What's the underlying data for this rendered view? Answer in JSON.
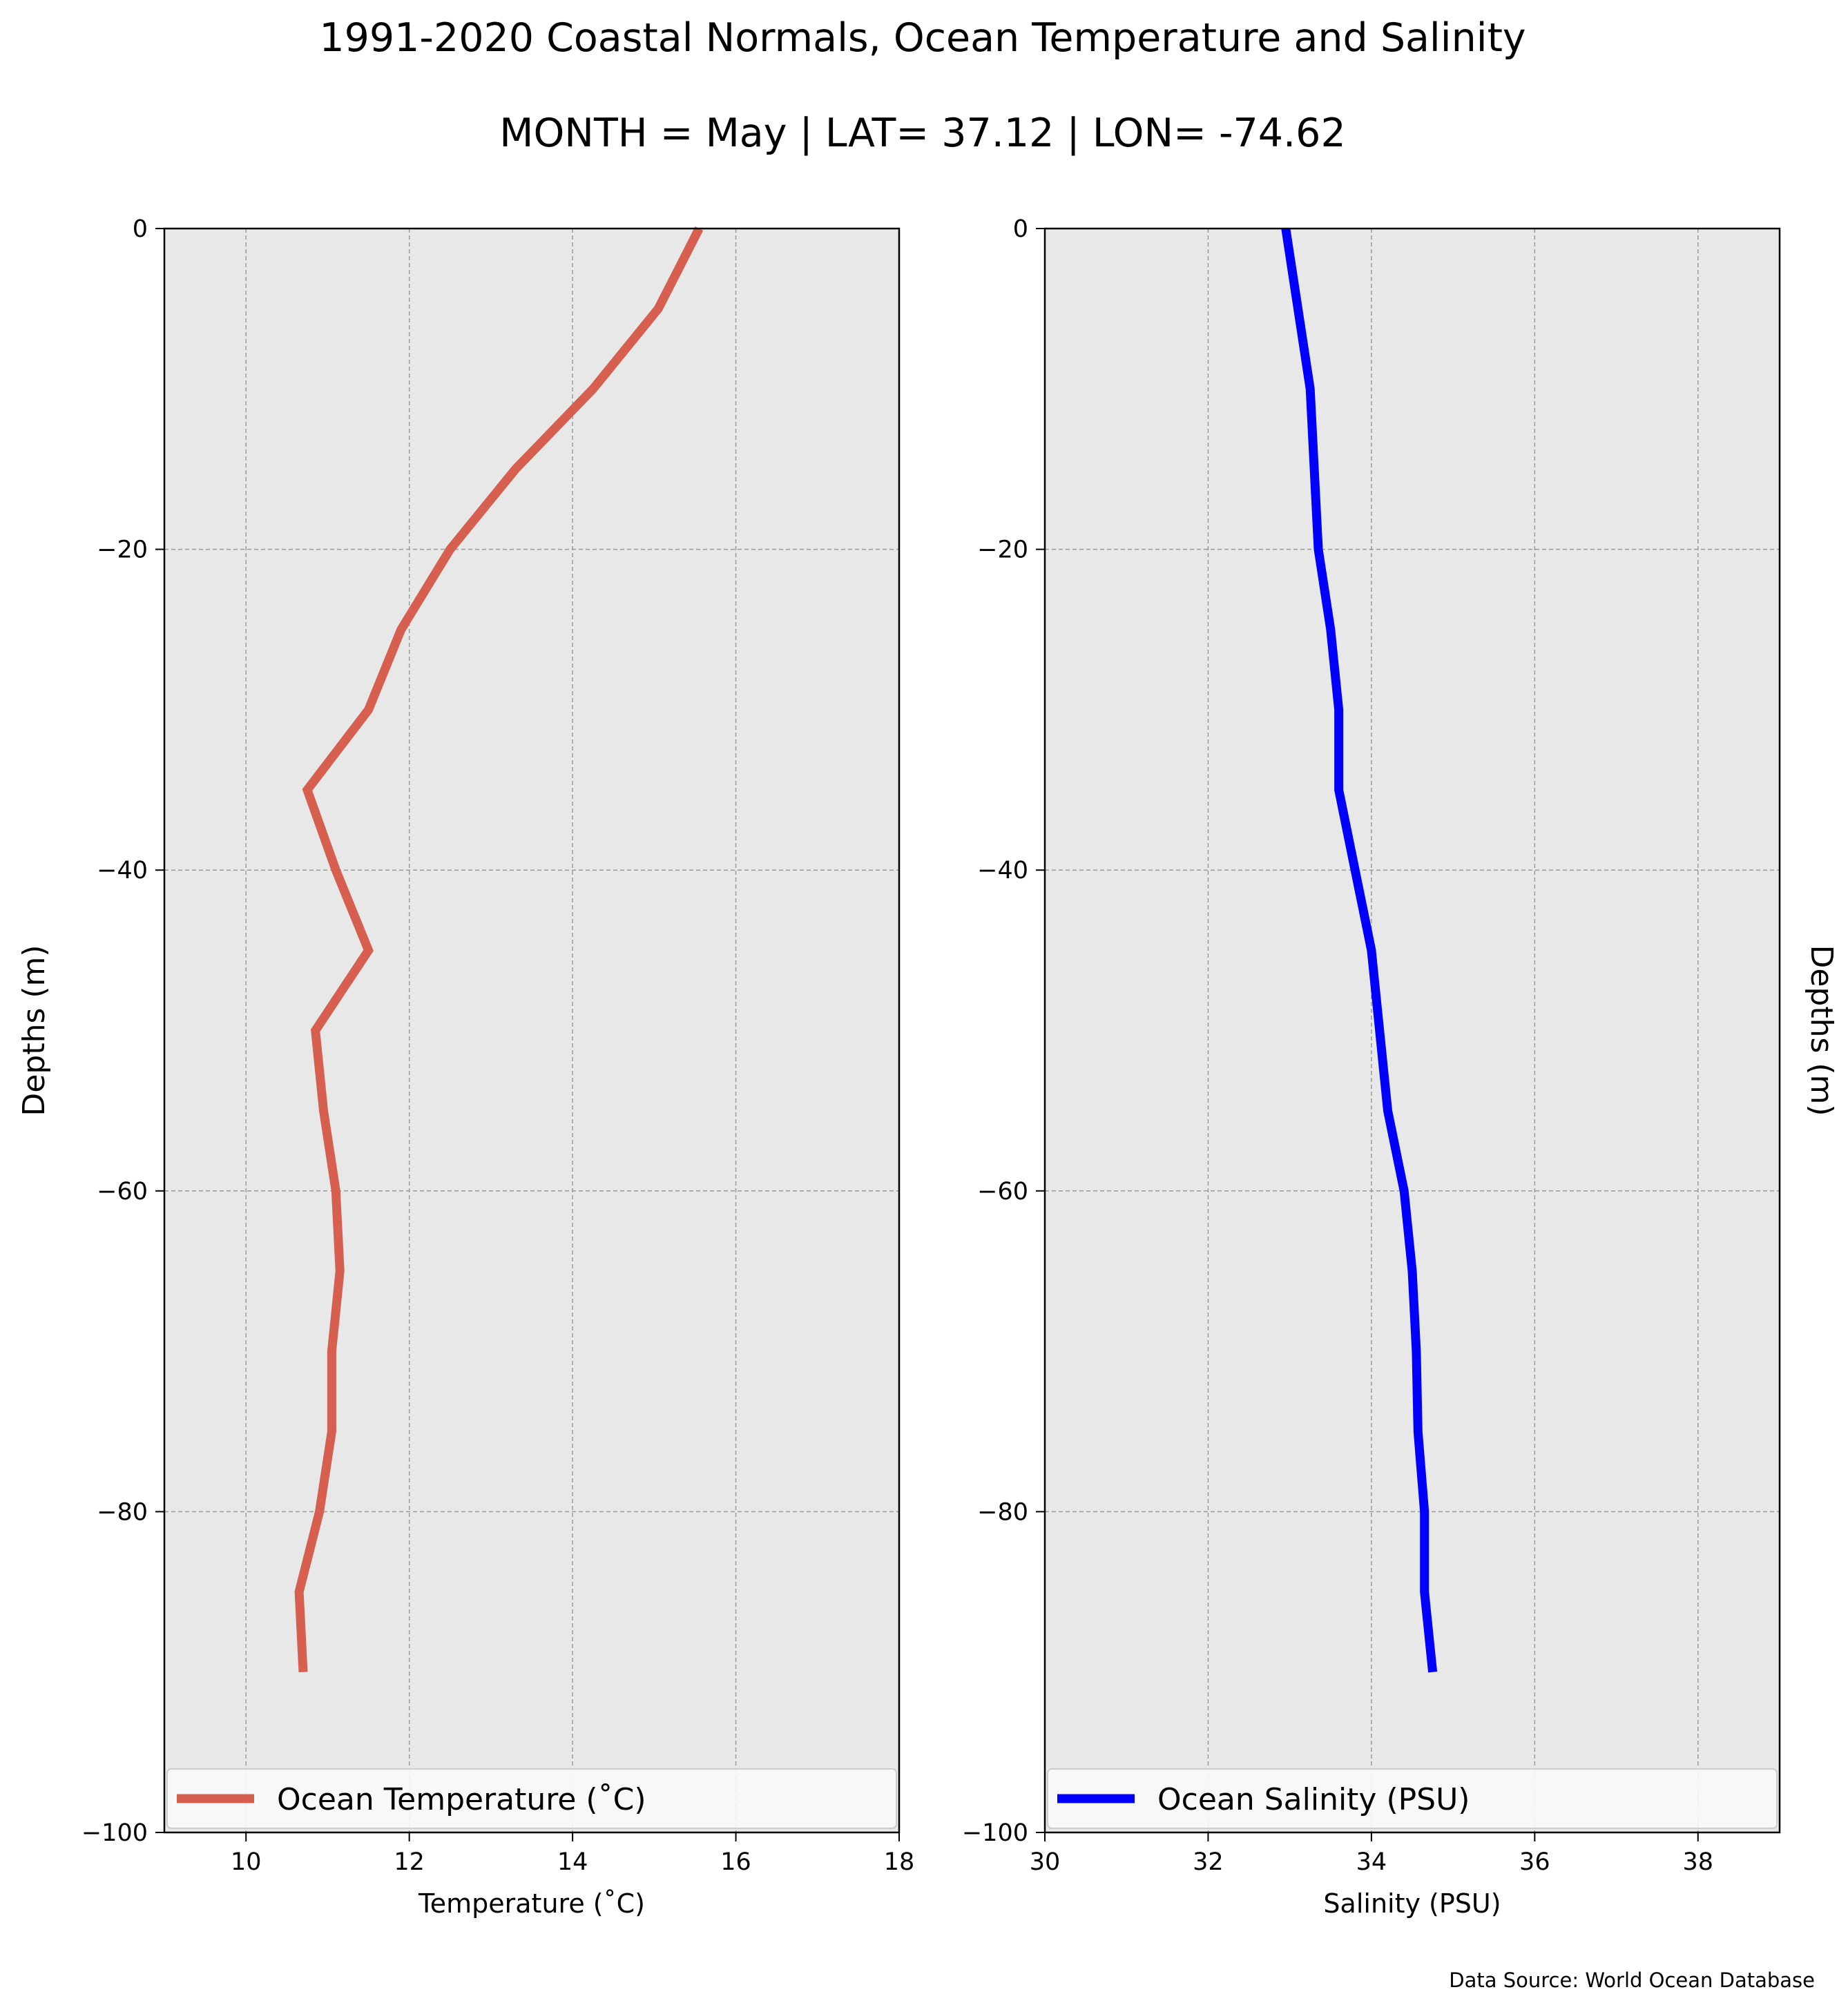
{
  "figure": {
    "title": "1991-2020 Coastal Normals, Ocean Temperature and Salinity",
    "subtitle": "MONTH = May | LAT= 37.12 | LON= -74.62",
    "source": "Data Source: World Ocean Database",
    "colors": {
      "panel_bg": "#e8e8e8",
      "grid": "#9a9a9a",
      "temperature": "#d65f4f",
      "salinity": "#0000ff"
    }
  },
  "chart_data": [
    {
      "type": "line",
      "xlabel": "Temperature (˚C)",
      "ylabel": "Depths (m)",
      "xlim": [
        9,
        18
      ],
      "ylim": [
        -100,
        0
      ],
      "xticks": [
        10,
        12,
        14,
        16,
        18
      ],
      "xtick_labels": [
        "10",
        "12",
        "14",
        "16",
        "18"
      ],
      "yticks": [
        0,
        -20,
        -40,
        -60,
        -80,
        -100
      ],
      "ytick_labels": [
        "0",
        "−20",
        "−40",
        "−60",
        "−80",
        "−100"
      ],
      "grid": true,
      "legend": "bottom",
      "series": [
        {
          "name": "Ocean Temperature (˚C)",
          "color": "#d65f4f",
          "x": [
            15.55,
            15.05,
            14.25,
            13.3,
            12.5,
            11.9,
            11.5,
            10.75,
            11.1,
            11.5,
            10.85,
            10.95,
            11.1,
            11.15,
            11.05,
            11.05,
            10.9,
            10.65,
            10.7
          ],
          "y": [
            0,
            -5,
            -10,
            -15,
            -20,
            -25,
            -30,
            -35,
            -40,
            -45,
            -50,
            -55,
            -60,
            -65,
            -70,
            -75,
            -80,
            -85,
            -90
          ]
        }
      ]
    },
    {
      "type": "line",
      "xlabel": "Salinity (PSU)",
      "ylabel": "Depths (m)",
      "xlim": [
        30,
        39
      ],
      "ylim": [
        -100,
        0
      ],
      "xticks": [
        30,
        32,
        34,
        36,
        38
      ],
      "xtick_labels": [
        "30",
        "32",
        "34",
        "36",
        "38"
      ],
      "yticks": [
        0,
        -20,
        -40,
        -60,
        -80,
        -100
      ],
      "ytick_labels": [
        "0",
        "−20",
        "−40",
        "−60",
        "−80",
        "−100"
      ],
      "grid": true,
      "legend": "bottom",
      "series": [
        {
          "name": "Ocean Salinity (PSU)",
          "color": "#0000ff",
          "x": [
            32.95,
            33.1,
            33.25,
            33.3,
            33.35,
            33.5,
            33.6,
            33.6,
            33.8,
            34.0,
            34.1,
            34.2,
            34.4,
            34.5,
            34.55,
            34.57,
            34.65,
            34.65,
            34.75
          ],
          "y": [
            0,
            -5,
            -10,
            -15,
            -20,
            -25,
            -30,
            -35,
            -40,
            -45,
            -50,
            -55,
            -60,
            -65,
            -70,
            -75,
            -80,
            -85,
            -90
          ]
        }
      ]
    }
  ]
}
